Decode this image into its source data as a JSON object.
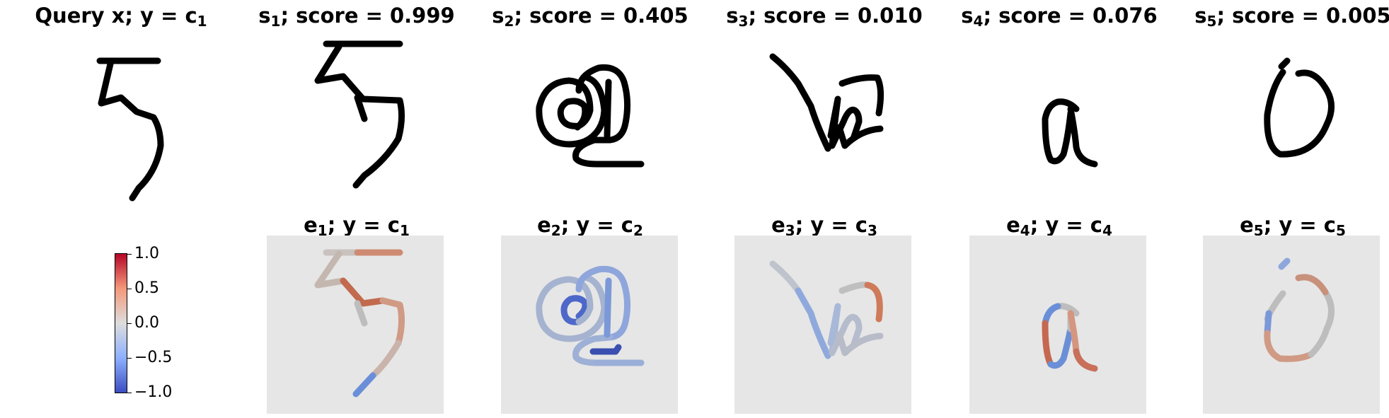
{
  "top_row": [
    {
      "name": "query",
      "title_main": "Query x; y = c",
      "title_sub": "1"
    },
    {
      "name": "s1",
      "title_main": "s",
      "title_sub": "1",
      "title_rest": "; score = 0.999"
    },
    {
      "name": "s2",
      "title_main": "s",
      "title_sub": "2",
      "title_rest": "; score = 0.405"
    },
    {
      "name": "s3",
      "title_main": "s",
      "title_sub": "3",
      "title_rest": "; score = 0.010"
    },
    {
      "name": "s4",
      "title_main": "s",
      "title_sub": "4",
      "title_rest": "; score = 0.076"
    },
    {
      "name": "s5",
      "title_main": "s",
      "title_sub": "5",
      "title_rest": "; score = 0.005"
    }
  ],
  "bottom_row": [
    {
      "name": "e1",
      "title_main": "e",
      "title_sub": "1",
      "title_mid": "; y = c",
      "title_sub2": "1"
    },
    {
      "name": "e2",
      "title_main": "e",
      "title_sub": "2",
      "title_mid": "; y = c",
      "title_sub2": "2"
    },
    {
      "name": "e3",
      "title_main": "e",
      "title_sub": "3",
      "title_mid": "; y = c",
      "title_sub2": "3"
    },
    {
      "name": "e4",
      "title_main": "e",
      "title_sub": "4",
      "title_mid": "; y = c",
      "title_sub2": "4"
    },
    {
      "name": "e5",
      "title_main": "e",
      "title_sub": "5",
      "title_mid": "; y = c",
      "title_sub2": "5"
    }
  ],
  "colorbar": {
    "ticks": [
      "1.0",
      "0.5",
      "0.0",
      "−0.5",
      "−1.0"
    ],
    "colors": [
      "#b40426",
      "#f4987a",
      "#dddddd",
      "#8db0fe",
      "#3b4cc0"
    ]
  },
  "colors": {
    "glyph_stroke": "#000000",
    "heat_background": "#e6e6e6",
    "neutral": "#bdbdbd",
    "red": "#c8705a",
    "blue": "#6b8fd6",
    "dark_blue": "#3a4fb0"
  }
}
